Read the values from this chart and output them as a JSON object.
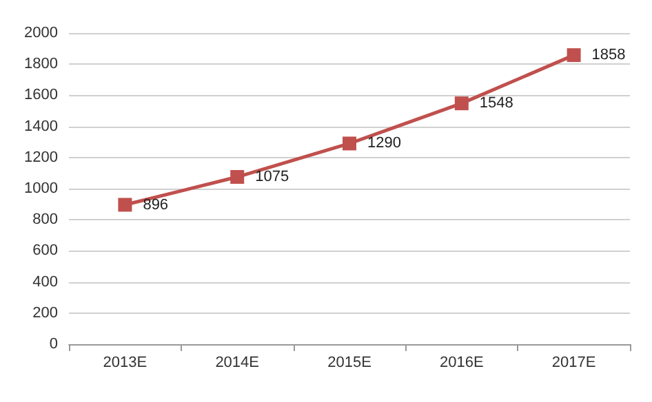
{
  "chart_data": {
    "type": "line",
    "categories": [
      "2013E",
      "2014E",
      "2015E",
      "2016E",
      "2017E"
    ],
    "series": [
      {
        "color": "#c0504d",
        "values": [
          896,
          1075,
          1290,
          1548,
          1858
        ]
      }
    ],
    "ylim": [
      0,
      2000
    ],
    "yticks": [
      0,
      200,
      400,
      600,
      800,
      1000,
      1200,
      1400,
      1600,
      1800,
      2000
    ],
    "grid": "y",
    "marker": "square",
    "line_style": "solid",
    "data_labels": true
  }
}
